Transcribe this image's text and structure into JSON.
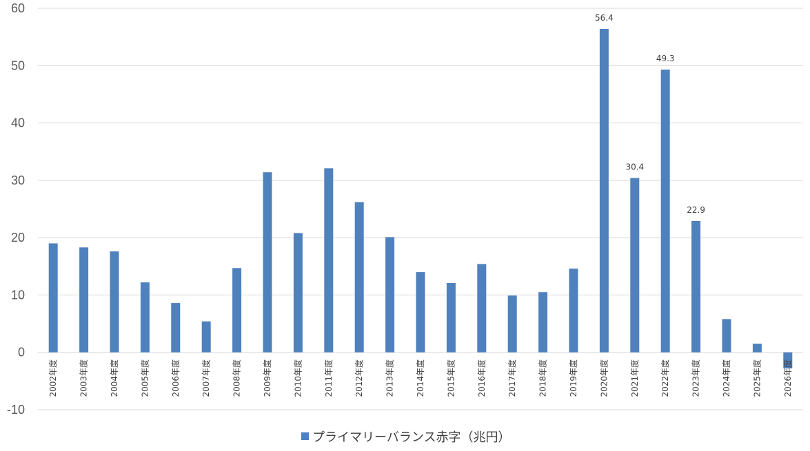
{
  "chart_data": {
    "type": "bar",
    "categories": [
      "2002年度",
      "2003年度",
      "2004年度",
      "2005年度",
      "2006年度",
      "2007年度",
      "2008年度",
      "2009年度",
      "2010年度",
      "2011年度",
      "2012年度",
      "2013年度",
      "2014年度",
      "2015年度",
      "2016年度",
      "2017年度",
      "2018年度",
      "2019年度",
      "2020年度",
      "2021年度",
      "2022年度",
      "2023年度",
      "2024年度",
      "2025年度",
      "2026年度"
    ],
    "series": [
      {
        "name": "プライマリーバランス赤字（兆円）",
        "values": [
          19.0,
          18.3,
          17.6,
          12.2,
          8.6,
          5.4,
          14.7,
          31.4,
          20.8,
          32.1,
          26.2,
          20.1,
          14.0,
          12.1,
          15.4,
          9.9,
          10.5,
          14.6,
          56.4,
          30.4,
          49.3,
          22.9,
          5.8,
          1.5,
          -2.8
        ]
      }
    ],
    "data_labels": [
      {
        "index": 18,
        "text": "56.4"
      },
      {
        "index": 19,
        "text": "30.4"
      },
      {
        "index": 20,
        "text": "49.3"
      },
      {
        "index": 21,
        "text": "22.9"
      }
    ],
    "y_ticks": [
      "60",
      "50",
      "40",
      "30",
      "20",
      "10",
      "0",
      "-10"
    ],
    "ylim": [
      -10,
      60
    ],
    "grid": true,
    "legend_position": "bottom",
    "colors": {
      "bar": "#4f81bd",
      "grid": "#d9d9d9"
    }
  }
}
